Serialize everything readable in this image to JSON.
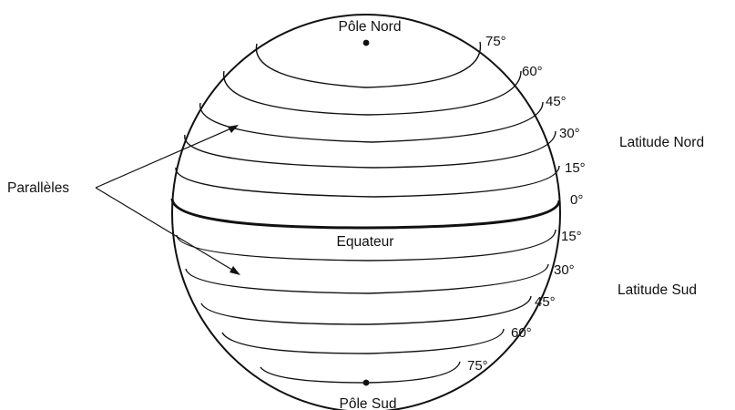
{
  "diagram": {
    "pole_north": "Pôle Nord",
    "pole_south": "Pôle Sud",
    "equator": "Equateur",
    "parallels": "Parallèles",
    "latitude_north": "Latitude Nord",
    "latitude_south": "Latitude Sud",
    "north_degrees": [
      "75°",
      "60°",
      "45°",
      "30°",
      "15°",
      "0°"
    ],
    "south_degrees": [
      "15°",
      "30°",
      "45°",
      "60°",
      "75°"
    ]
  },
  "colors": {
    "ink": "#111111",
    "background": "#ffffff"
  }
}
